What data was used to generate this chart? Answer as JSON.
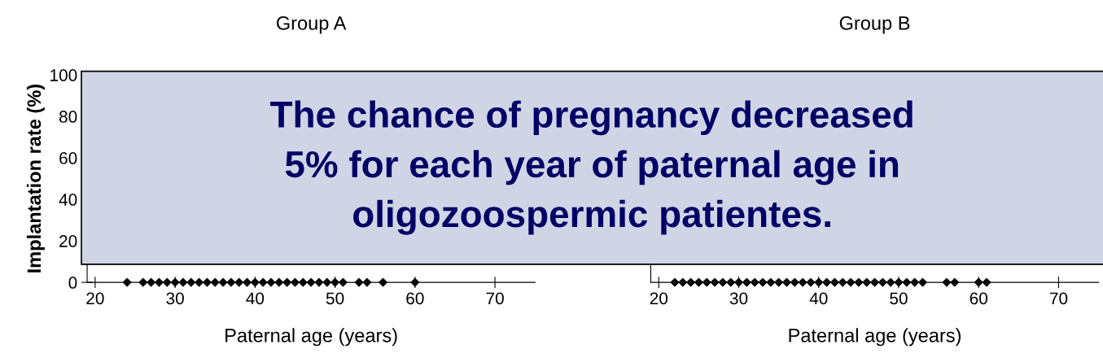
{
  "chart_data": [
    {
      "type": "scatter",
      "title": "Group A",
      "xlabel": "Paternal age (years)",
      "ylabel": "Implantation rate (%)",
      "x": [
        24,
        26,
        27,
        28,
        29,
        30,
        31,
        32,
        33,
        34,
        35,
        36,
        37,
        38,
        39,
        40,
        41,
        42,
        43,
        44,
        45,
        46,
        47,
        48,
        49,
        50,
        51,
        53,
        54,
        56,
        60
      ],
      "values": [
        0,
        0,
        0,
        0,
        0,
        0,
        0,
        0,
        0,
        0,
        0,
        0,
        0,
        0,
        0,
        0,
        0,
        0,
        0,
        0,
        0,
        0,
        0,
        0,
        0,
        0,
        0,
        0,
        0,
        0,
        0
      ],
      "color": "#000000",
      "marker": "diamond",
      "xlim": [
        19,
        75
      ],
      "xticks": [
        20,
        30,
        40,
        50,
        60,
        70
      ],
      "ylim": [
        0,
        100
      ],
      "yticks": [
        0,
        20,
        40,
        60,
        80,
        100
      ],
      "grid": false,
      "legend": false,
      "annotations": [
        "The chance of pregnancy decreased\n5% for each year of paternal age in\noligozoospermic patientes."
      ]
    },
    {
      "type": "scatter",
      "title": "Group B",
      "xlabel": "Paternal age (years)",
      "x": [
        22,
        23,
        24,
        25,
        26,
        27,
        28,
        29,
        30,
        31,
        32,
        33,
        34,
        35,
        36,
        37,
        38,
        39,
        40,
        41,
        42,
        43,
        44,
        45,
        46,
        47,
        48,
        49,
        50,
        51,
        52,
        53,
        56,
        57,
        60,
        61
      ],
      "values": [
        0,
        0,
        0,
        0,
        0,
        0,
        0,
        0,
        0,
        0,
        0,
        0,
        0,
        0,
        0,
        0,
        0,
        0,
        0,
        0,
        0,
        0,
        0,
        0,
        0,
        0,
        0,
        0,
        0,
        0,
        0,
        0,
        0,
        0,
        0,
        0
      ],
      "color": "#000000",
      "marker": "diamond",
      "xlim": [
        19,
        75
      ],
      "xticks": [
        20,
        30,
        40,
        50,
        60,
        70
      ],
      "ylim": [
        0,
        100
      ],
      "tick_labels": "x",
      "grid": false,
      "legend": false
    }
  ]
}
